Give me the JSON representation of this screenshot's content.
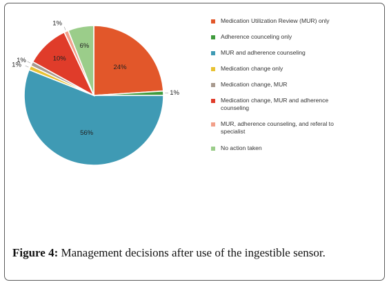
{
  "chart_data": {
    "type": "pie",
    "title": "",
    "slices": [
      {
        "name": "Medication Utilization Review (MUR) only",
        "value": 24,
        "label": "24%",
        "color": "#e2572a"
      },
      {
        "name": "Adherence counceling only",
        "value": 1,
        "label": "1%",
        "color": "#3f9a3c"
      },
      {
        "name": "MUR and adherence counseling",
        "value": 56,
        "label": "56%",
        "color": "#3f9ab4"
      },
      {
        "name": "Medication change only",
        "value": 1,
        "label": "1%",
        "color": "#e8c233"
      },
      {
        "name": "Medication change, MUR",
        "value": 1,
        "label": "1%",
        "color": "#a89a8f"
      },
      {
        "name": "Medication change, MUR and adherence counseling",
        "value": 10,
        "label": "10%",
        "color": "#e03c2a"
      },
      {
        "name": "MUR, adherence counseling, and referal to specialist",
        "value": 1,
        "label": "1%",
        "color": "#f2a08a"
      },
      {
        "name": "No action taken",
        "value": 6,
        "label": "6%",
        "color": "#9bcd8a"
      }
    ],
    "legend_position": "right"
  },
  "legend": {
    "items": [
      {
        "label": "Medication Utilization Review (MUR) only",
        "color": "#e2572a"
      },
      {
        "label": "Adherence counceling only",
        "color": "#3f9a3c"
      },
      {
        "label": "MUR and adherence counseling",
        "color": "#3f9ab4"
      },
      {
        "label": "Medication change only",
        "color": "#e8c233"
      },
      {
        "label": "Medication change, MUR",
        "color": "#a89a8f"
      },
      {
        "label": "Medication change, MUR and adherence counseling",
        "color": "#e03c2a"
      },
      {
        "label": "MUR, adherence counseling, and referal to specialist",
        "color": "#f2a08a"
      },
      {
        "label": "No action taken",
        "color": "#9bcd8a"
      }
    ]
  },
  "caption": {
    "label": "Figure 4:",
    "text": " Management decisions after use of the ingestible sensor."
  }
}
